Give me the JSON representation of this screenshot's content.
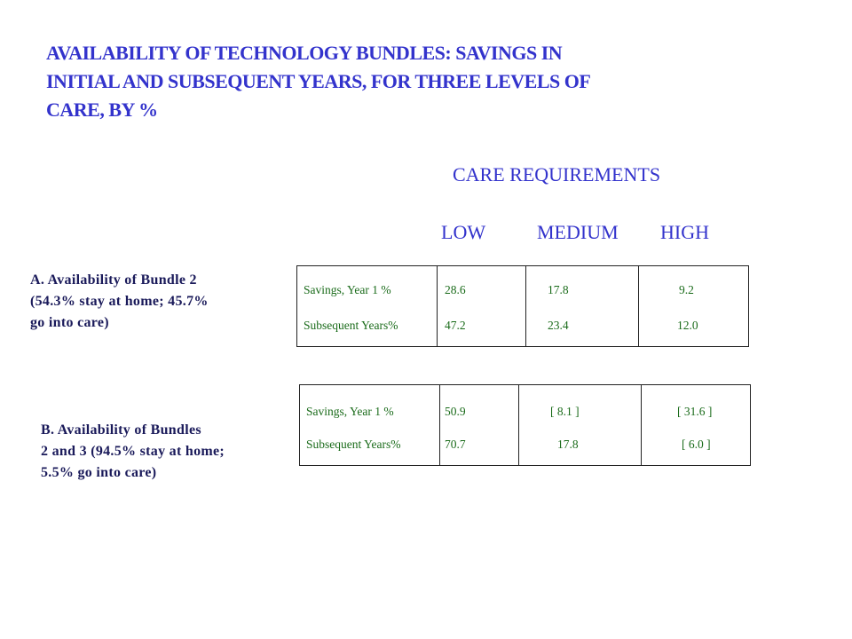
{
  "title": {
    "line1": "AVAILABILITY OF TECHNOLOGY BUNDLES: SAVINGS IN",
    "line2": "INITIAL AND SUBSEQUENT YEARS, FOR THREE LEVELS OF",
    "line3": "CARE, BY %"
  },
  "care_requirements": "CARE REQUIREMENTS",
  "columns": {
    "low": "LOW",
    "medium": "MEDIUM",
    "high": "HIGH"
  },
  "panel_a": {
    "label": {
      "line1": "A. Availability of Bundle 2",
      "line2": "(54.3% stay at home; 45.7%",
      "line3": "go into care)"
    },
    "rows": [
      {
        "label": "Savings, Year 1 %",
        "low": "28.6",
        "medium": "17.8",
        "high": "9.2"
      },
      {
        "label": "Subsequent Years%",
        "low": "47.2",
        "medium": "23.4",
        "high": "12.0"
      }
    ]
  },
  "panel_b": {
    "label": {
      "line1": "B. Availability of Bundles",
      "line2": "2 and 3 (94.5% stay at home;",
      "line3": "5.5% go into care)"
    },
    "rows": [
      {
        "label": "Savings, Year 1 %",
        "low": "50.9",
        "medium": "[ 8.1 ]",
        "high": "[ 31.6 ]"
      },
      {
        "label": "Subsequent Years%",
        "low": "70.7",
        "medium": "17.8",
        "high": "[ 6.0 ]"
      }
    ]
  },
  "colors": {
    "heading": "#3333cc",
    "panel_label": "#1a1a5a",
    "table_text": "#1a6b1a",
    "border": "#222222"
  }
}
